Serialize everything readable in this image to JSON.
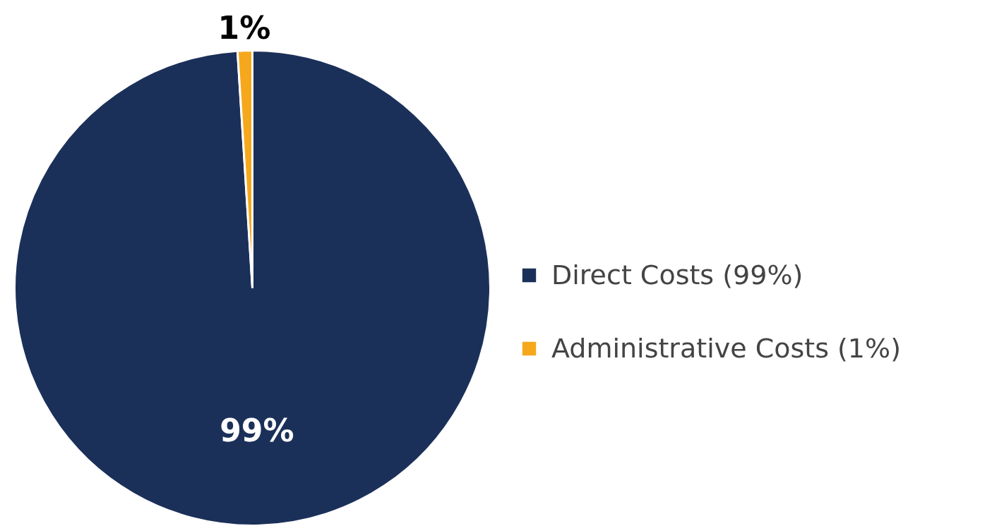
{
  "chart_data": {
    "type": "pie",
    "categories": [
      "Direct Costs (99%)",
      "Administrative Costs (1%)"
    ],
    "values": [
      99,
      1
    ],
    "colors": [
      "#1b3059",
      "#f6a81c"
    ],
    "value_labels": [
      "99%",
      "1%"
    ],
    "legend": "right"
  }
}
